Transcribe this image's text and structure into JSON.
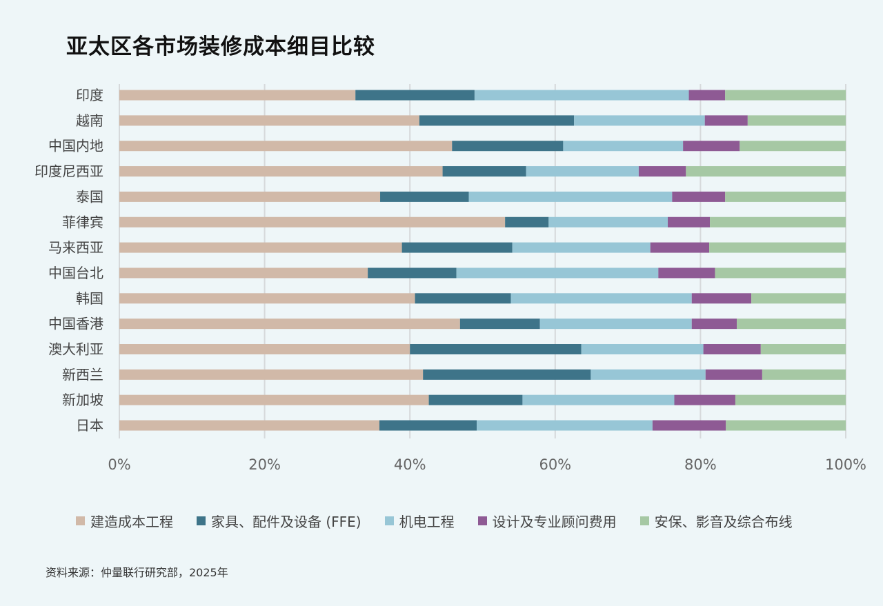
{
  "title": "亚太区各市场装修成本细目比较",
  "source": "资料来源：仲量联行研究部，2025年",
  "chart_data": {
    "type": "bar",
    "orientation": "horizontal",
    "stacked": true,
    "percent": true,
    "categories": [
      "印度",
      "越南",
      "中国内地",
      "印度尼西亚",
      "泰国",
      "菲律宾",
      "马来西亚",
      "中国台北",
      "韩国",
      "中国香港",
      "澳大利亚",
      "新西兰",
      "新加坡",
      "日本"
    ],
    "series": [
      {
        "name": "建造成本工程",
        "color": "#d1b9a8",
        "values": [
          32.5,
          41.3,
          45.8,
          44.5,
          35.9,
          53.1,
          38.9,
          34.2,
          40.7,
          46.9,
          40.0,
          41.8,
          42.6,
          35.8
        ]
      },
      {
        "name": "家具、配件及设备 (FFE)",
        "color": "#3e7489",
        "values": [
          16.4,
          21.3,
          15.3,
          11.5,
          12.2,
          6.0,
          15.2,
          12.2,
          13.2,
          11.0,
          23.6,
          23.1,
          12.9,
          13.4
        ]
      },
      {
        "name": "机电工程",
        "color": "#97c6d6",
        "values": [
          29.5,
          18.0,
          16.5,
          15.5,
          28.0,
          16.4,
          19.0,
          27.8,
          24.9,
          20.9,
          16.8,
          15.8,
          20.9,
          24.2
        ]
      },
      {
        "name": "设计及专业顾问费用",
        "color": "#8e5a94",
        "values": [
          5.0,
          5.9,
          7.8,
          6.5,
          7.3,
          5.8,
          8.1,
          7.8,
          8.2,
          6.2,
          7.9,
          7.8,
          8.4,
          10.1
        ]
      },
      {
        "name": "安保、影音及综合布线",
        "color": "#a6c8a4",
        "values": [
          16.6,
          13.5,
          14.6,
          22.0,
          16.6,
          18.7,
          18.8,
          18.0,
          13.0,
          15.0,
          11.7,
          11.5,
          15.2,
          16.5
        ]
      }
    ],
    "xlim": [
      0,
      100
    ],
    "xticks": [
      "0%",
      "20%",
      "40%",
      "60%",
      "80%",
      "100%"
    ],
    "grid": true,
    "legend_position": "bottom"
  }
}
